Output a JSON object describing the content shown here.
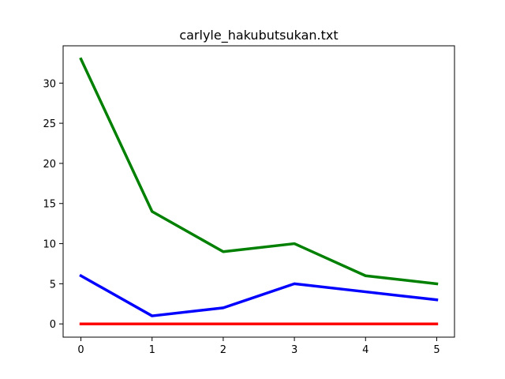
{
  "chart_data": {
    "type": "line",
    "title": "carlyle_hakubutsukan.txt",
    "xlabel": "",
    "ylabel": "",
    "x": [
      0,
      1,
      2,
      3,
      4,
      5
    ],
    "xlim": [
      -0.25,
      5.25
    ],
    "ylim": [
      -1.65,
      34.65
    ],
    "xticks": [
      0,
      1,
      2,
      3,
      4,
      5
    ],
    "yticks": [
      0,
      5,
      10,
      15,
      20,
      25,
      30
    ],
    "grid": false,
    "legend": "none",
    "series": [
      {
        "color": "#008000",
        "values": [
          33,
          14,
          9,
          10,
          6,
          5
        ]
      },
      {
        "color": "#0000ff",
        "values": [
          6,
          1,
          2,
          5,
          4,
          3
        ]
      },
      {
        "color": "#ff0000",
        "values": [
          0,
          0,
          0,
          0,
          0,
          0
        ]
      }
    ]
  }
}
